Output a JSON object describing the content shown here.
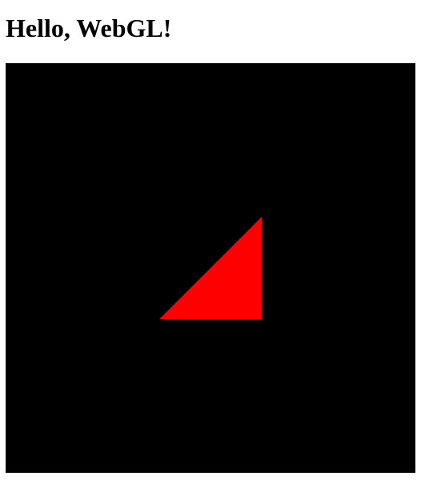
{
  "page": {
    "title": "Hello, WebGL!"
  },
  "canvas": {
    "background_color": "#000000",
    "shape": {
      "kind": "triangle",
      "fill_color": "#ff0000"
    }
  }
}
